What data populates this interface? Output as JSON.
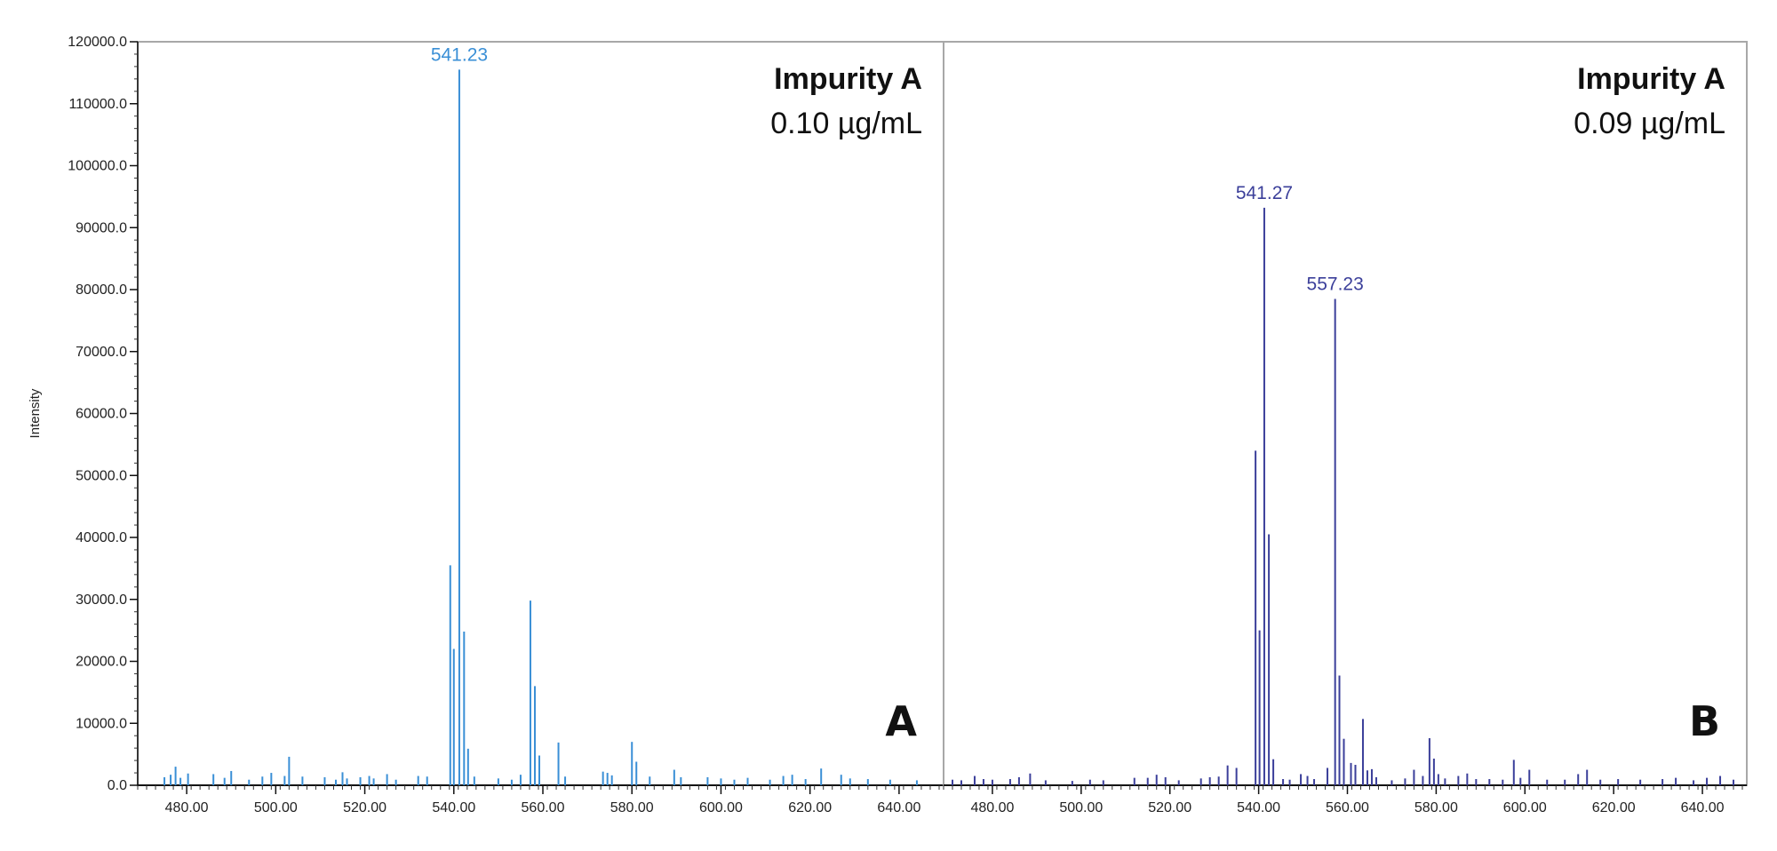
{
  "chart_data": [
    {
      "type": "bar",
      "panel_label": "A",
      "title": "Impurity A",
      "subtitle": "0.10 µg/mL",
      "ylabel": "Intensity",
      "xlabel": "",
      "xlim": [
        469,
        650
      ],
      "ylim": [
        0,
        120000
      ],
      "x_ticks": [
        "480.00",
        "500.00",
        "520.00",
        "540.00",
        "560.00",
        "580.00",
        "600.00",
        "620.00",
        "640.00"
      ],
      "y_ticks": [
        "0.0",
        "10000.0",
        "20000.0",
        "30000.0",
        "40000.0",
        "50000.0",
        "60000.0",
        "70000.0",
        "80000.0",
        "90000.0",
        "100000.0",
        "110000.0",
        "120000.0"
      ],
      "color": "#3a8fd6",
      "peak_labels": [
        {
          "mz": 541.23,
          "text": "541.23"
        }
      ],
      "peaks": [
        [
          475.0,
          1300
        ],
        [
          476.4,
          1700
        ],
        [
          477.5,
          3000
        ],
        [
          478.6,
          1200
        ],
        [
          480.3,
          1900
        ],
        [
          486.0,
          1800
        ],
        [
          488.5,
          1200
        ],
        [
          490.0,
          2300
        ],
        [
          494.0,
          900
        ],
        [
          497.0,
          1400
        ],
        [
          499.0,
          2000
        ],
        [
          502.0,
          1500
        ],
        [
          503.0,
          4600
        ],
        [
          506.0,
          1400
        ],
        [
          511.0,
          1300
        ],
        [
          513.5,
          900
        ],
        [
          515.0,
          2100
        ],
        [
          516.0,
          1100
        ],
        [
          519.0,
          1300
        ],
        [
          521.0,
          1500
        ],
        [
          522.0,
          1100
        ],
        [
          525.0,
          1800
        ],
        [
          527.0,
          900
        ],
        [
          532.0,
          1500
        ],
        [
          534.0,
          1400
        ],
        [
          539.2,
          35500
        ],
        [
          540.0,
          22000
        ],
        [
          541.23,
          115500
        ],
        [
          542.3,
          24800
        ],
        [
          543.2,
          5900
        ],
        [
          544.6,
          1400
        ],
        [
          550.0,
          1100
        ],
        [
          553.0,
          900
        ],
        [
          555.0,
          1700
        ],
        [
          557.2,
          29800
        ],
        [
          558.2,
          16000
        ],
        [
          559.2,
          4800
        ],
        [
          563.5,
          6900
        ],
        [
          565.0,
          1400
        ],
        [
          573.5,
          2200
        ],
        [
          574.5,
          2000
        ],
        [
          575.5,
          1600
        ],
        [
          580.0,
          7000
        ],
        [
          581.0,
          3800
        ],
        [
          584.0,
          1400
        ],
        [
          589.5,
          2500
        ],
        [
          591.0,
          1300
        ],
        [
          597.0,
          1300
        ],
        [
          600.0,
          1100
        ],
        [
          603.0,
          900
        ],
        [
          606.0,
          1200
        ],
        [
          611.0,
          900
        ],
        [
          614.0,
          1500
        ],
        [
          616.0,
          1700
        ],
        [
          619.0,
          1000
        ],
        [
          622.5,
          2700
        ],
        [
          627.0,
          1700
        ],
        [
          629.0,
          1100
        ],
        [
          633.0,
          1000
        ],
        [
          638.0,
          900
        ],
        [
          644.0,
          800
        ]
      ]
    },
    {
      "type": "bar",
      "panel_label": "B",
      "title": "Impurity A",
      "subtitle": "0.09 µg/mL",
      "ylabel": "",
      "xlabel": "",
      "xlim": [
        469,
        650
      ],
      "ylim": [
        0,
        120000
      ],
      "x_ticks": [
        "480.00",
        "500.00",
        "520.00",
        "540.00",
        "560.00",
        "580.00",
        "600.00",
        "620.00",
        "640.00"
      ],
      "y_ticks": [],
      "color": "#3b3f9a",
      "peak_labels": [
        {
          "mz": 541.27,
          "text": "541.27"
        },
        {
          "mz": 557.23,
          "text": "557.23"
        }
      ],
      "peaks": [
        [
          471.0,
          900
        ],
        [
          473.0,
          800
        ],
        [
          476.0,
          1500
        ],
        [
          478.0,
          1000
        ],
        [
          480.0,
          900
        ],
        [
          484.0,
          1000
        ],
        [
          486.0,
          1300
        ],
        [
          488.5,
          1900
        ],
        [
          492.0,
          800
        ],
        [
          498.0,
          700
        ],
        [
          502.0,
          900
        ],
        [
          505.0,
          800
        ],
        [
          512.0,
          1200
        ],
        [
          515.0,
          1200
        ],
        [
          517.0,
          1700
        ],
        [
          519.0,
          1300
        ],
        [
          522.0,
          800
        ],
        [
          527.0,
          1100
        ],
        [
          529.0,
          1300
        ],
        [
          531.0,
          1400
        ],
        [
          533.0,
          3200
        ],
        [
          535.0,
          2800
        ],
        [
          539.3,
          54000
        ],
        [
          540.2,
          25000
        ],
        [
          541.27,
          93200
        ],
        [
          542.3,
          40500
        ],
        [
          543.3,
          4200
        ],
        [
          545.5,
          1000
        ],
        [
          547.0,
          900
        ],
        [
          549.5,
          1800
        ],
        [
          551.0,
          1500
        ],
        [
          552.5,
          1000
        ],
        [
          555.5,
          2800
        ],
        [
          557.23,
          78500
        ],
        [
          558.2,
          17700
        ],
        [
          559.2,
          7500
        ],
        [
          560.8,
          3600
        ],
        [
          561.8,
          3300
        ],
        [
          563.5,
          10700
        ],
        [
          564.5,
          2400
        ],
        [
          565.5,
          2600
        ],
        [
          566.5,
          1300
        ],
        [
          570.0,
          800
        ],
        [
          573.0,
          1100
        ],
        [
          575.0,
          2500
        ],
        [
          577.0,
          1500
        ],
        [
          578.5,
          7600
        ],
        [
          579.5,
          4300
        ],
        [
          580.5,
          1800
        ],
        [
          582.0,
          1100
        ],
        [
          585.0,
          1500
        ],
        [
          587.0,
          1900
        ],
        [
          589.0,
          1000
        ],
        [
          592.0,
          1000
        ],
        [
          595.0,
          900
        ],
        [
          597.5,
          4100
        ],
        [
          599.0,
          1200
        ],
        [
          601.0,
          2500
        ],
        [
          605.0,
          900
        ],
        [
          609.0,
          900
        ],
        [
          612.0,
          1800
        ],
        [
          614.0,
          2500
        ],
        [
          617.0,
          900
        ],
        [
          621.0,
          1000
        ],
        [
          626.0,
          900
        ],
        [
          631.0,
          1000
        ],
        [
          634.0,
          1200
        ],
        [
          638.0,
          800
        ],
        [
          641.0,
          1200
        ],
        [
          644.0,
          1500
        ],
        [
          647.0,
          900
        ]
      ]
    }
  ]
}
